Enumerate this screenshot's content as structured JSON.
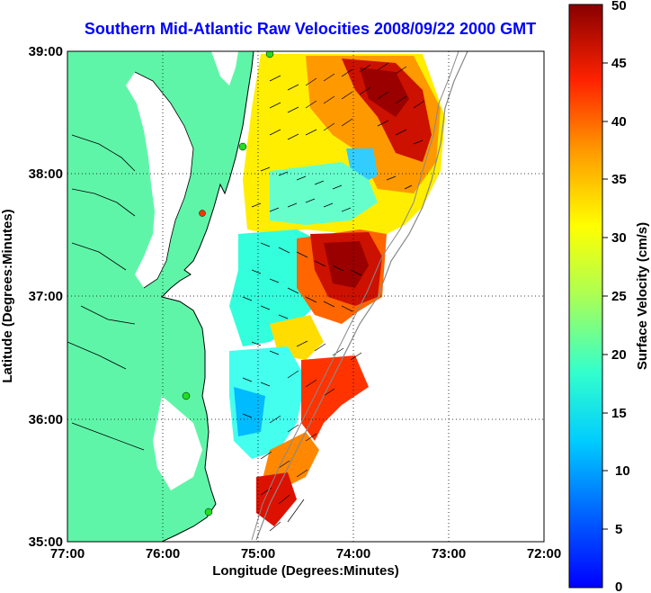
{
  "title": "Southern Mid-Atlantic Raw Velocities 2008/09/22 2000 GMT",
  "map": {
    "xlabel": "Longitude (Degrees:Minutes)",
    "ylabel": "Latitude (Degrees:Minutes)",
    "x_ticks": [
      "77:00",
      "76:00",
      "75:00",
      "74:00",
      "73:00",
      "72:00"
    ],
    "y_ticks": [
      "39:00",
      "38:00",
      "37:00",
      "36:00",
      "35:00"
    ],
    "x_range": [
      -77,
      -72
    ],
    "y_range": [
      35,
      39
    ],
    "grid": true,
    "land_color": "#5ff5a8",
    "ocean_color": "#ffffff",
    "station_colors": [
      "#22dd22",
      "#ff3300"
    ]
  },
  "colorbar": {
    "label": "Surface Velocity (cm/s)",
    "ticks": [
      "50",
      "45",
      "40",
      "35",
      "30",
      "25",
      "20",
      "15",
      "10",
      "5",
      "0"
    ],
    "range": [
      0,
      50
    ],
    "colormap": "jet"
  }
}
